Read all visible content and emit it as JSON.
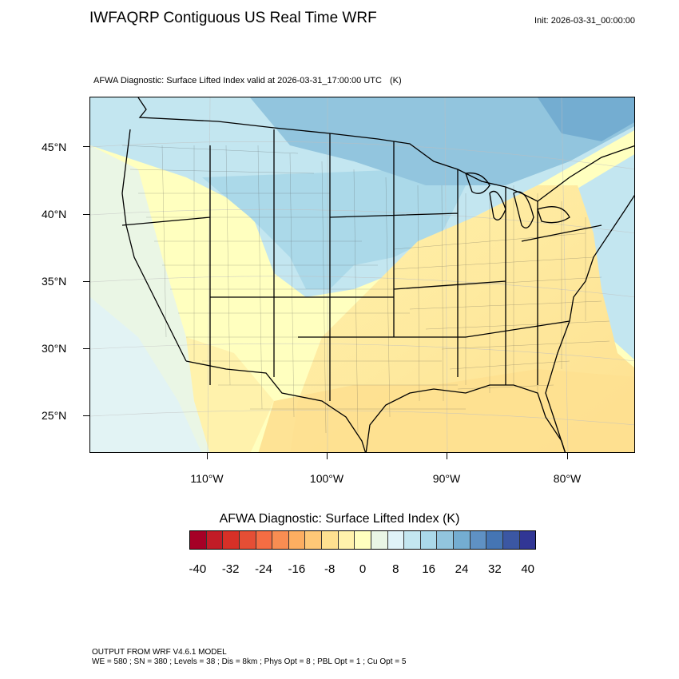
{
  "title": "IWFAQRP Contiguous US Real Time WRF",
  "init": "Init: 2026-03-31_00:00:00",
  "subtitle": "AFWA Diagnostic: Surface Lifted Index valid at 2026-03-31_17:00:00 UTC",
  "subtitle_units": "(K)",
  "map": {
    "lat_labels": [
      "45°N",
      "40°N",
      "35°N",
      "30°N",
      "25°N"
    ],
    "lon_labels": [
      "110°W",
      "100°W",
      "90°W",
      "80°W"
    ],
    "colors": {
      "frame": "#000000",
      "boundary": "#000000",
      "land_cool": "#c6e2ef",
      "land_warm": "#fde9a6"
    }
  },
  "colorbar": {
    "title": "AFWA Diagnostic: Surface Lifted Index  (K)",
    "labels": [
      "-40",
      "-32",
      "-24",
      "-16",
      "-8",
      "0",
      "8",
      "16",
      "24",
      "32",
      "40"
    ],
    "colors": [
      "#a50026",
      "#c21c27",
      "#d73027",
      "#e54e35",
      "#f46d43",
      "#f88d52",
      "#fdae61",
      "#fec877",
      "#fee090",
      "#fff2ac",
      "#ffffbf",
      "#eaf6e5",
      "#e0f3f8",
      "#c3e6f0",
      "#abd9e9",
      "#92c5de",
      "#74add1",
      "#5f91c4",
      "#4575b4",
      "#3b57a3",
      "#313695"
    ]
  },
  "footer": {
    "line1": "OUTPUT FROM WRF V4.6.1 MODEL",
    "line2": "WE = 580 ; SN = 380 ; Levels = 38 ; Dis = 8km ; Phys Opt = 8 ; PBL Opt = 1 ; Cu Opt = 5"
  }
}
